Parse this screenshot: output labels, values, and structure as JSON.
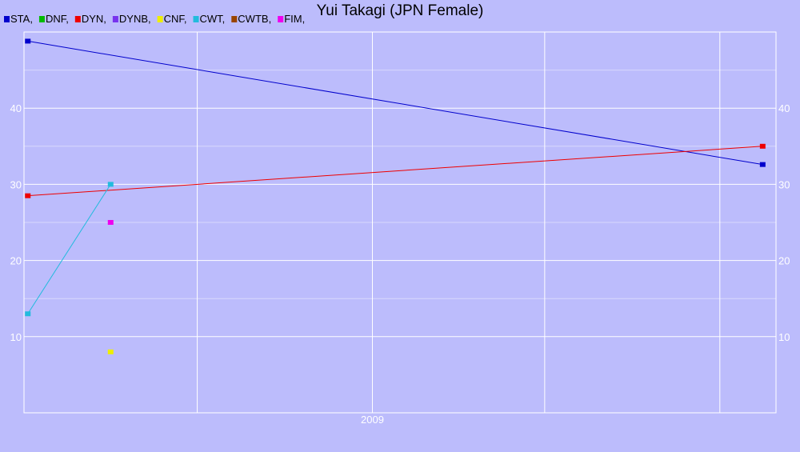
{
  "chart_data": {
    "type": "line",
    "title": "Yui Takagi (JPN Female)",
    "legend": {
      "placement": "top-left",
      "entries": [
        {
          "label": "STA,",
          "color": "#0000cc"
        },
        {
          "label": "DNF,",
          "color": "#00bb00"
        },
        {
          "label": "DYN,",
          "color": "#ee0000"
        },
        {
          "label": "DYNB,",
          "color": "#7733ee"
        },
        {
          "label": "CNF,",
          "color": "#eeee00"
        },
        {
          "label": "CWT,",
          "color": "#22bbdd"
        },
        {
          "label": "CWTB,",
          "color": "#994400"
        },
        {
          "label": "FIM,",
          "color": "#ee00ee"
        }
      ]
    },
    "x_axis": {
      "type": "date",
      "range": [
        "2008-01-01",
        "2010-03-01"
      ],
      "tick_labels": [
        {
          "date": "2009-01-01",
          "label": "2009"
        }
      ],
      "gridlines": [
        "2008-07-01",
        "2009-01-01",
        "2009-07-01",
        "2010-01-01"
      ]
    },
    "y_axis": {
      "range": [
        0,
        50
      ],
      "ticks": [
        10,
        20,
        30,
        40
      ],
      "minor_gridlines": [
        15,
        25,
        35,
        45
      ],
      "both_sides": true
    },
    "grid": true,
    "series": [
      {
        "name": "STA",
        "color": "#0000cc",
        "line": true,
        "points": [
          {
            "x": "2008-01-05",
            "y": 48.8
          },
          {
            "x": "2010-02-15",
            "y": 32.6
          }
        ]
      },
      {
        "name": "DYN",
        "color": "#ee0000",
        "line": true,
        "points": [
          {
            "x": "2008-01-05",
            "y": 28.5
          },
          {
            "x": "2010-02-15",
            "y": 35.0
          }
        ]
      },
      {
        "name": "CWT",
        "color": "#22bbdd",
        "line": true,
        "points": [
          {
            "x": "2008-01-05",
            "y": 13.0
          },
          {
            "x": "2008-04-01",
            "y": 30.0
          }
        ]
      },
      {
        "name": "FIM",
        "color": "#ee00ee",
        "line": false,
        "points": [
          {
            "x": "2008-04-01",
            "y": 25.0
          }
        ]
      },
      {
        "name": "CNF",
        "color": "#eeee00",
        "line": false,
        "points": [
          {
            "x": "2008-04-01",
            "y": 8.0
          }
        ]
      }
    ]
  }
}
